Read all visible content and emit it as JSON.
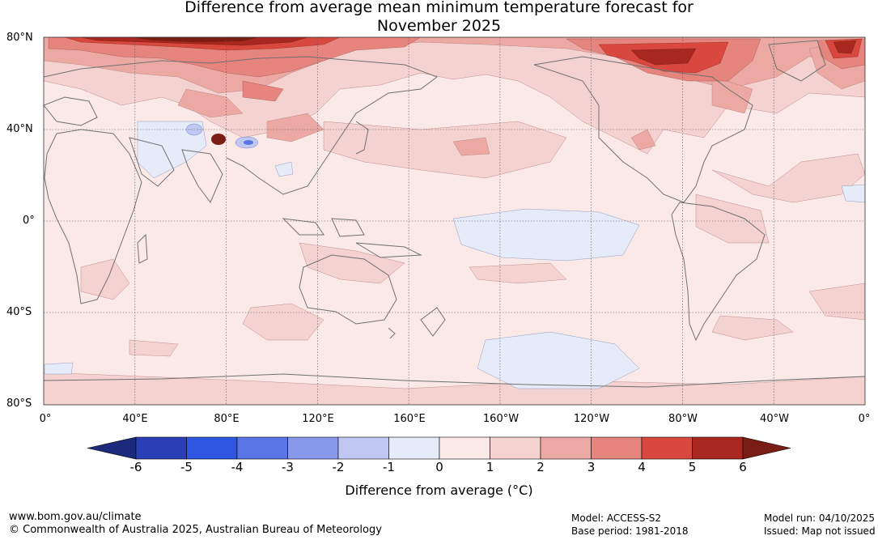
{
  "title": {
    "line1": "Difference from average mean minimum temperature forecast for",
    "line2": "November 2025"
  },
  "map": {
    "lat_labels": [
      "80°N",
      "40°N",
      "0°",
      "40°S",
      "80°S"
    ],
    "lon_labels": [
      "0°",
      "40°E",
      "80°E",
      "120°E",
      "160°E",
      "160°W",
      "120°W",
      "80°W",
      "40°W",
      "0°"
    ]
  },
  "colorbar": {
    "label": "Difference from average (°C)",
    "ticks": [
      "-6",
      "-5",
      "-4",
      "-3",
      "-2",
      "-1",
      "0",
      "1",
      "2",
      "3",
      "4",
      "5",
      "6"
    ],
    "colors": [
      "#1b2a7a",
      "#2a3fb5",
      "#2f55e3",
      "#5a76e6",
      "#8898ea",
      "#bfc7f2",
      "#e6ebfa",
      "#fbe9e8",
      "#f4d2d0",
      "#eca9a4",
      "#e6847e",
      "#d9483f",
      "#a8281f",
      "#7a1d14"
    ]
  },
  "footer": {
    "website": "www.bom.gov.au/climate",
    "copyright": "© Commonwealth of Australia 2025, Australian Bureau of Meteorology",
    "model": "Model: ACCESS-S2",
    "base_period": "Base period: 1981-2018",
    "model_run": "Model run: 04/10/2025",
    "issued": "Issued: Map not issued"
  }
}
